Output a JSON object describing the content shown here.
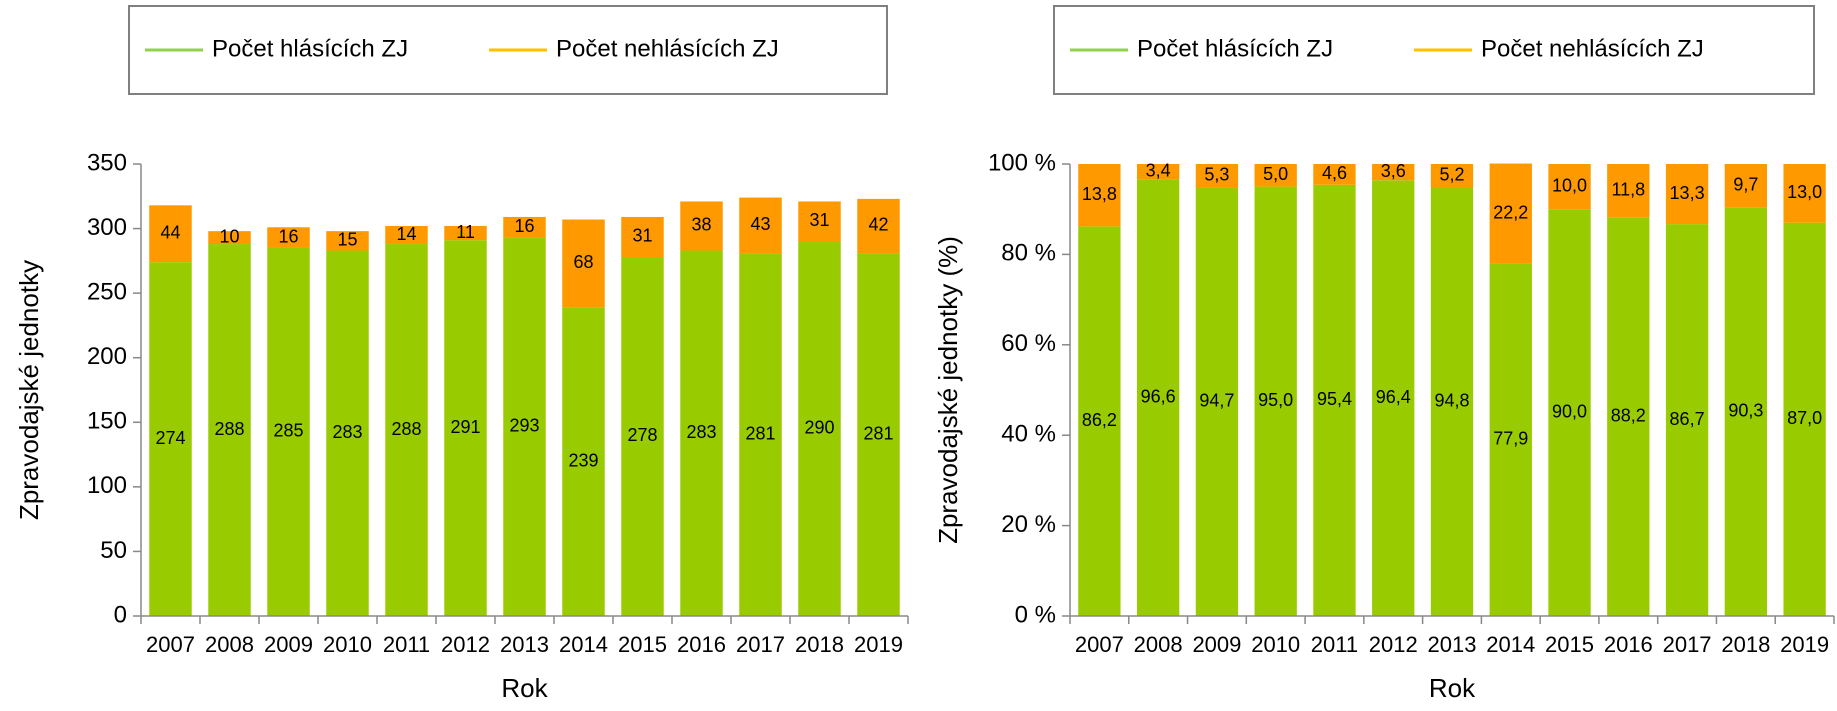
{
  "chart_data": [
    {
      "type": "bar",
      "stacked": true,
      "ylabel": "Zpravodajské jednotky",
      "xlabel": "Rok",
      "categories": [
        "2007",
        "2008",
        "2009",
        "2010",
        "2011",
        "2012",
        "2013",
        "2014",
        "2015",
        "2016",
        "2017",
        "2018",
        "2019"
      ],
      "series": [
        {
          "name": "Počet hlásících ZJ",
          "color": "#99cc00",
          "legend_color": "#92d050",
          "values": [
            274,
            288,
            285,
            283,
            288,
            291,
            293,
            239,
            278,
            283,
            281,
            290,
            281
          ]
        },
        {
          "name": "Počet nehlásících ZJ",
          "color": "#ff9900",
          "legend_color": "#ffc000",
          "values": [
            44,
            10,
            16,
            15,
            14,
            11,
            16,
            68,
            31,
            38,
            43,
            31,
            42
          ]
        }
      ],
      "ylim": [
        0,
        350
      ],
      "yticks": [
        0,
        50,
        100,
        150,
        200,
        250,
        300,
        350
      ],
      "legend": "top"
    },
    {
      "type": "bar",
      "stacked": true,
      "ylabel": "Zpravodajské jednotky (%)",
      "xlabel": "Rok",
      "categories": [
        "2007",
        "2008",
        "2009",
        "2010",
        "2011",
        "2012",
        "2013",
        "2014",
        "2015",
        "2016",
        "2017",
        "2018",
        "2019"
      ],
      "series": [
        {
          "name": "Počet hlásících ZJ",
          "color": "#99cc00",
          "legend_color": "#92d050",
          "values": [
            86.2,
            96.6,
            94.7,
            95.0,
            95.4,
            96.4,
            94.8,
            77.9,
            90.0,
            88.2,
            86.7,
            90.3,
            87.0
          ],
          "value_labels": [
            "86,2",
            "96,6",
            "94,7",
            "95,0",
            "95,4",
            "96,4",
            "94,8",
            "77,9",
            "90,0",
            "88,2",
            "86,7",
            "90,3",
            "87,0"
          ]
        },
        {
          "name": "Počet nehlásících ZJ",
          "color": "#ff9900",
          "legend_color": "#ffc000",
          "values": [
            13.8,
            3.4,
            5.3,
            5.0,
            4.6,
            3.6,
            5.2,
            22.2,
            10.0,
            11.8,
            13.3,
            9.7,
            13.0
          ],
          "value_labels": [
            "13,8",
            "3,4",
            "5,3",
            "5,0",
            "4,6",
            "3,6",
            "5,2",
            "22,2",
            "10,0",
            "11,8",
            "13,3",
            "9,7",
            "13,0"
          ]
        }
      ],
      "ylim": [
        0,
        100
      ],
      "yticks": [
        {
          "value": 0,
          "label": "0 %"
        },
        {
          "value": 20,
          "label": "20 %"
        },
        {
          "value": 40,
          "label": "40 %"
        },
        {
          "value": 60,
          "label": "60 %"
        },
        {
          "value": 80,
          "label": "80 %"
        },
        {
          "value": 100,
          "label": "100 %"
        }
      ],
      "legend": "top"
    }
  ]
}
